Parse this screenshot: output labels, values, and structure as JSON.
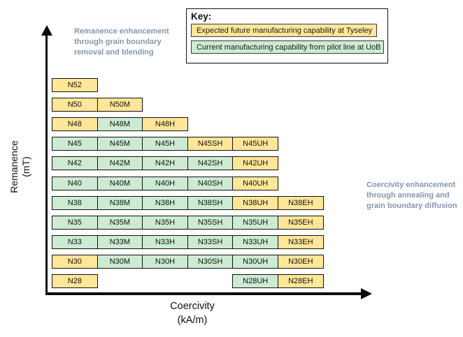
{
  "axes": {
    "y_label_line1": "Remanence",
    "y_label_line2": "(mT)",
    "x_label_line1": "Coercivity",
    "x_label_line2": "(kA/m)"
  },
  "annotations": {
    "left": "Remanence enhancement through grain boundary removal and blending",
    "right": "Coercivity enhancement through annealing and grain boundary diffusion"
  },
  "key": {
    "title": "Key:",
    "items": [
      {
        "label": "Expected future manufacturing capability at Tyseley",
        "status": "future"
      },
      {
        "label": "Current manufacturing capability from pilot line at UoB",
        "status": "current"
      }
    ]
  },
  "chart_data": {
    "type": "table",
    "title": "",
    "xlabel": "Coercivity (kA/m)",
    "ylabel": "Remanence (mT)",
    "columns": [
      "",
      "M",
      "H",
      "SH",
      "UH",
      "EH"
    ],
    "status_colors": {
      "future": "#FFE699",
      "current": "#CDEBD3"
    },
    "status_meaning": {
      "future": "Expected future manufacturing capability at Tyseley",
      "current": "Current manufacturing capability from pilot line at UoB"
    },
    "rows": [
      {
        "grade": "N52",
        "cells": [
          {
            "label": "N52",
            "col": 0,
            "status": "future"
          }
        ]
      },
      {
        "grade": "N50",
        "cells": [
          {
            "label": "N50",
            "col": 0,
            "status": "future"
          },
          {
            "label": "N50M",
            "col": 1,
            "status": "future"
          }
        ]
      },
      {
        "grade": "N48",
        "cells": [
          {
            "label": "N48",
            "col": 0,
            "status": "future"
          },
          {
            "label": "N48M",
            "col": 1,
            "status": "current"
          },
          {
            "label": "N48H",
            "col": 2,
            "status": "future"
          }
        ]
      },
      {
        "grade": "N45",
        "cells": [
          {
            "label": "N45",
            "col": 0,
            "status": "current"
          },
          {
            "label": "N45M",
            "col": 1,
            "status": "current"
          },
          {
            "label": "N45H",
            "col": 2,
            "status": "current"
          },
          {
            "label": "N45SH",
            "col": 3,
            "status": "future"
          },
          {
            "label": "N45UH",
            "col": 4,
            "status": "future"
          }
        ]
      },
      {
        "grade": "N42",
        "cells": [
          {
            "label": "N42",
            "col": 0,
            "status": "current"
          },
          {
            "label": "N42M",
            "col": 1,
            "status": "current"
          },
          {
            "label": "N42H",
            "col": 2,
            "status": "current"
          },
          {
            "label": "N42SH",
            "col": 3,
            "status": "current"
          },
          {
            "label": "N42UH",
            "col": 4,
            "status": "future"
          }
        ]
      },
      {
        "grade": "N40",
        "cells": [
          {
            "label": "N40",
            "col": 0,
            "status": "current"
          },
          {
            "label": "N40M",
            "col": 1,
            "status": "current"
          },
          {
            "label": "N40H",
            "col": 2,
            "status": "current"
          },
          {
            "label": "N40SH",
            "col": 3,
            "status": "current"
          },
          {
            "label": "N40UH",
            "col": 4,
            "status": "future"
          }
        ]
      },
      {
        "grade": "N38",
        "cells": [
          {
            "label": "N38",
            "col": 0,
            "status": "current"
          },
          {
            "label": "N38M",
            "col": 1,
            "status": "current"
          },
          {
            "label": "N38H",
            "col": 2,
            "status": "current"
          },
          {
            "label": "N38SH",
            "col": 3,
            "status": "current"
          },
          {
            "label": "N38UH",
            "col": 4,
            "status": "future"
          },
          {
            "label": "N38EH",
            "col": 5,
            "status": "future"
          }
        ]
      },
      {
        "grade": "N35",
        "cells": [
          {
            "label": "N35",
            "col": 0,
            "status": "current"
          },
          {
            "label": "N35M",
            "col": 1,
            "status": "current"
          },
          {
            "label": "N35H",
            "col": 2,
            "status": "current"
          },
          {
            "label": "N35SH",
            "col": 3,
            "status": "current"
          },
          {
            "label": "N35UH",
            "col": 4,
            "status": "current"
          },
          {
            "label": "N35EH",
            "col": 5,
            "status": "future"
          }
        ]
      },
      {
        "grade": "N33",
        "cells": [
          {
            "label": "N33",
            "col": 0,
            "status": "current"
          },
          {
            "label": "N33M",
            "col": 1,
            "status": "current"
          },
          {
            "label": "N33H",
            "col": 2,
            "status": "current"
          },
          {
            "label": "N33SH",
            "col": 3,
            "status": "current"
          },
          {
            "label": "N33UH",
            "col": 4,
            "status": "current"
          },
          {
            "label": "N33EH",
            "col": 5,
            "status": "future"
          }
        ]
      },
      {
        "grade": "N30",
        "cells": [
          {
            "label": "N30",
            "col": 0,
            "status": "future"
          },
          {
            "label": "N30M",
            "col": 1,
            "status": "current"
          },
          {
            "label": "N30H",
            "col": 2,
            "status": "current"
          },
          {
            "label": "N30SH",
            "col": 3,
            "status": "current"
          },
          {
            "label": "N30UH",
            "col": 4,
            "status": "current"
          },
          {
            "label": "N30EH",
            "col": 5,
            "status": "future"
          }
        ]
      },
      {
        "grade": "N28",
        "cells": [
          {
            "label": "N28",
            "col": 0,
            "status": "future"
          },
          {
            "label": "N28UH",
            "col": 4,
            "status": "current"
          },
          {
            "label": "N28EH",
            "col": 5,
            "status": "future"
          }
        ]
      }
    ]
  }
}
